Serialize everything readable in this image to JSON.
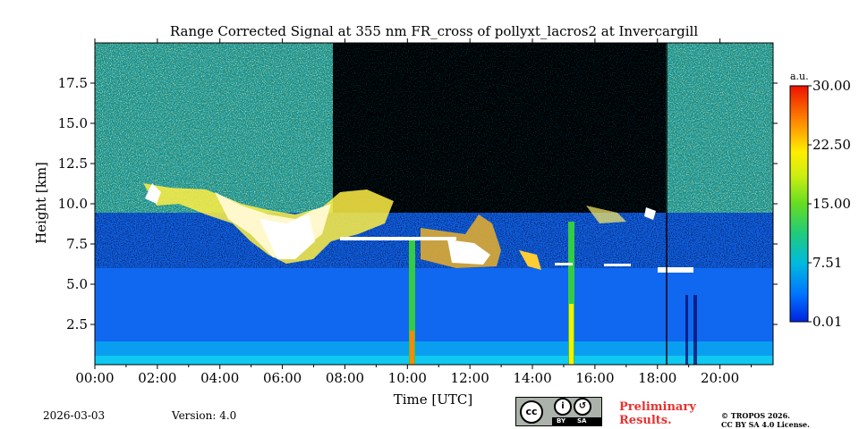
{
  "chart_data": {
    "type": "heatmap",
    "title": "Range Corrected Signal at 355 nm FR_cross of pollyxt_lacros2 at Invercargill",
    "xlabel": "Time [UTC]",
    "ylabel": "Height [km]",
    "x_range_hours": [
      0,
      21.7
    ],
    "y_range_km": [
      0,
      20
    ],
    "x_ticks": [
      "00:00",
      "02:00",
      "04:00",
      "06:00",
      "08:00",
      "10:00",
      "12:00",
      "14:00",
      "16:00",
      "18:00",
      "20:00"
    ],
    "y_ticks": [
      "2.5",
      "5.0",
      "7.5",
      "10.0",
      "12.5",
      "15.0",
      "17.5"
    ],
    "colorbar": {
      "unit": "a.u.",
      "range": [
        0.01,
        30.0
      ],
      "ticks": [
        "0.01",
        "7.51",
        "15.00",
        "22.50",
        "30.00"
      ]
    },
    "features": [
      {
        "name": "aerosol boundary layer",
        "height_km": [
          0,
          1.2
        ],
        "time_h": [
          0,
          21.7
        ],
        "level": "high"
      },
      {
        "name": "cirrus / mid-level cloud",
        "height_km": [
          6.0,
          11.0
        ],
        "time_h": [
          1.5,
          9.5
        ],
        "level": "saturated"
      },
      {
        "name": "cloud layer",
        "height_km": [
          6.5,
          9.5
        ],
        "time_h": [
          11.7,
          14.0
        ],
        "level": "saturated"
      },
      {
        "name": "thin cloud line",
        "height_km": [
          7.6,
          7.9
        ],
        "time_h": [
          8.0,
          12.5
        ],
        "level": "saturated"
      },
      {
        "name": "precipitation streak",
        "height_km": [
          0,
          7.8
        ],
        "time_h": [
          10.05,
          10.25
        ],
        "level": "high"
      },
      {
        "name": "precipitation streak",
        "height_km": [
          0,
          8
        ],
        "time_h": [
          15.05,
          15.25
        ],
        "level": "high"
      },
      {
        "name": "low cloud line",
        "height_km": [
          5.6,
          6.0
        ],
        "time_h": [
          17.8,
          19.0
        ],
        "level": "saturated"
      }
    ]
  },
  "footer": {
    "date": "2026-03-03",
    "version": "Version: 4.0",
    "preliminary_1": "Preliminary",
    "preliminary_2": "Results.",
    "license_1": "© TROPOS 2026.",
    "license_2": "CC BY SA 4.0 License.",
    "cc_labels": {
      "cc": "cc",
      "by": "BY",
      "sa": "SA"
    }
  },
  "colors": {
    "title_red": "#e8312f",
    "background": "#ffffff"
  }
}
